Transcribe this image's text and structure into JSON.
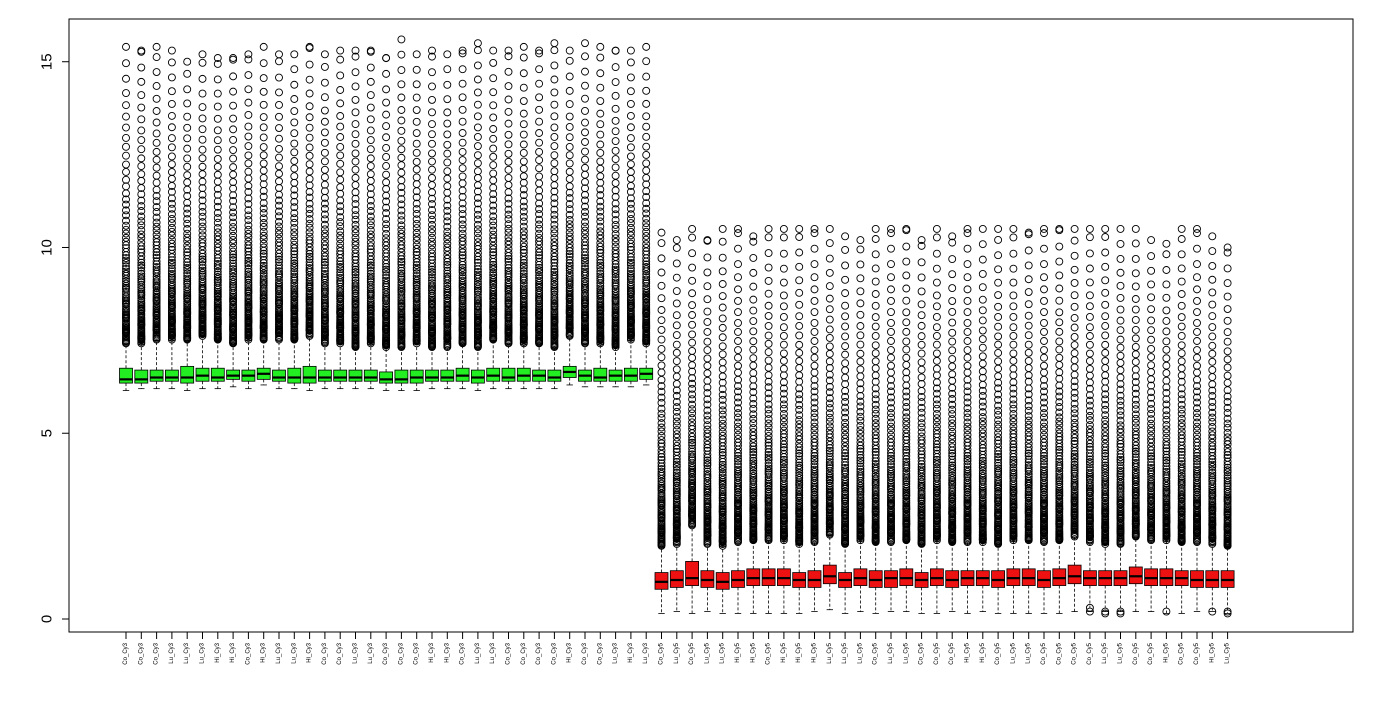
{
  "chart_data": {
    "type": "boxplot",
    "ylim": [
      -0.35,
      16.15
    ],
    "yticks": [
      0,
      5,
      10,
      15
    ],
    "grid": false,
    "legend": "none",
    "colors": {
      "group1": "#22ee22",
      "group2": "#ee1111",
      "outline": "#000000",
      "frame": "#000000"
    },
    "series": [
      {
        "color": "#22ee22",
        "categories": [
          "Co_Cy3",
          "Co_Cy3",
          "Co_Cy3",
          "Lu_Cy3",
          "Lu_Cy3",
          "Lu_Cy3",
          "Hi_Cy3",
          "Hi_Cy3",
          "Co_Cy3",
          "Hi_Cy3",
          "Lu_Cy3",
          "Lu_Cy3",
          "Hi_Cy3",
          "Co_Cy3",
          "Co_Cy3",
          "Lu_Cy3",
          "Lu_Cy3",
          "Co_Cy3",
          "Co_Cy3",
          "Co_Cy3",
          "Hi_Cy3",
          "Hi_Cy3",
          "Co_Cy3",
          "Lu_Cy3",
          "Lu_Cy3",
          "Co_Cy3",
          "Co_Cy3",
          "Co_Cy3",
          "Co_Cy3",
          "Hi_Cy3",
          "Co_Cy3",
          "Co_Cy3",
          "Lu_Cy3",
          "Hi_Cy3",
          "Lu_Cy3"
        ],
        "whisker_low": [
          6.15,
          6.2,
          6.2,
          6.2,
          6.15,
          6.2,
          6.2,
          6.25,
          6.2,
          6.3,
          6.2,
          6.2,
          6.15,
          6.2,
          6.2,
          6.2,
          6.2,
          6.15,
          6.15,
          6.15,
          6.2,
          6.2,
          6.2,
          6.15,
          6.2,
          6.2,
          6.2,
          6.2,
          6.2,
          6.3,
          6.25,
          6.25,
          6.25,
          6.25,
          6.3
        ],
        "q1": [
          6.35,
          6.35,
          6.4,
          6.4,
          6.35,
          6.4,
          6.4,
          6.45,
          6.4,
          6.45,
          6.4,
          6.35,
          6.35,
          6.4,
          6.4,
          6.4,
          6.4,
          6.35,
          6.35,
          6.35,
          6.4,
          6.4,
          6.4,
          6.35,
          6.4,
          6.4,
          6.4,
          6.4,
          6.4,
          6.5,
          6.4,
          6.4,
          6.4,
          6.4,
          6.45
        ],
        "median": [
          6.45,
          6.45,
          6.5,
          6.5,
          6.5,
          6.55,
          6.5,
          6.55,
          6.55,
          6.6,
          6.5,
          6.5,
          6.5,
          6.5,
          6.5,
          6.5,
          6.5,
          6.45,
          6.45,
          6.5,
          6.5,
          6.5,
          6.55,
          6.5,
          6.55,
          6.5,
          6.55,
          6.55,
          6.5,
          6.65,
          6.55,
          6.5,
          6.55,
          6.55,
          6.6
        ],
        "q3": [
          6.75,
          6.7,
          6.7,
          6.7,
          6.8,
          6.75,
          6.75,
          6.7,
          6.7,
          6.75,
          6.7,
          6.75,
          6.8,
          6.7,
          6.7,
          6.7,
          6.7,
          6.65,
          6.7,
          6.7,
          6.7,
          6.7,
          6.75,
          6.7,
          6.75,
          6.75,
          6.75,
          6.7,
          6.7,
          6.8,
          6.7,
          6.75,
          6.7,
          6.75,
          6.75
        ],
        "whisker_high": [
          7.4,
          7.4,
          7.5,
          7.5,
          7.5,
          7.6,
          7.5,
          7.4,
          7.5,
          7.5,
          7.5,
          7.5,
          7.6,
          7.4,
          7.4,
          7.3,
          7.4,
          7.3,
          7.3,
          7.4,
          7.3,
          7.3,
          7.4,
          7.3,
          7.5,
          7.4,
          7.4,
          7.4,
          7.3,
          7.6,
          7.4,
          7.4,
          7.3,
          7.5,
          7.4
        ],
        "max": [
          15.4,
          15.3,
          15.4,
          15.3,
          15.0,
          15.2,
          15.1,
          15.1,
          15.2,
          15.4,
          15.2,
          15.2,
          15.4,
          15.2,
          15.3,
          15.3,
          15.3,
          15.1,
          15.6,
          15.2,
          15.3,
          15.2,
          15.3,
          15.5,
          15.3,
          15.3,
          15.4,
          15.3,
          15.5,
          15.3,
          15.5,
          15.4,
          15.3,
          15.3,
          15.4
        ]
      },
      {
        "color": "#ee1111",
        "categories": [
          "Co_Cy5",
          "Lu_Cy5",
          "Co_Cy5",
          "Lu_Cy5",
          "Lu_Cy5",
          "Hi_Cy5",
          "Hi_Cy5",
          "Co_Cy5",
          "Hi_Cy5",
          "Hi_Cy5",
          "Hi_Cy5",
          "Lu_Cy5",
          "Lu_Cy5",
          "Lu_Cy5",
          "Co_Cy5",
          "Lu_Cy5",
          "Lu_Cy5",
          "Co_Cy5",
          "Co_Cy5",
          "Co_Cy5",
          "Hi_Cy5",
          "Hi_Cy5",
          "Co_Cy5",
          "Lu_Cy5",
          "Lu_Cy5",
          "Co_Cy5",
          "Co_Cy5",
          "Co_Cy5",
          "Co_Cy5",
          "Lu_Cy5",
          "Lu_Cy5",
          "Co_Cy5",
          "Co_Cy5",
          "Hi_Cy5",
          "Co_Cy5",
          "Co_Cy5",
          "Hi_Cy5",
          "Lu_Cy5"
        ],
        "whisker_low": [
          0.15,
          0.2,
          0.15,
          0.2,
          0.15,
          0.15,
          0.15,
          0.15,
          0.15,
          0.15,
          0.2,
          0.25,
          0.15,
          0.2,
          0.15,
          0.2,
          0.2,
          0.15,
          0.15,
          0.2,
          0.15,
          0.2,
          0.15,
          0.15,
          0.15,
          0.15,
          0.15,
          0.2,
          0.2,
          0.2,
          0.2,
          0.2,
          0.2,
          0.15,
          0.15,
          0.2,
          0.2,
          0.15
        ],
        "q1": [
          0.8,
          0.85,
          0.9,
          0.85,
          0.8,
          0.85,
          0.9,
          0.9,
          0.9,
          0.85,
          0.85,
          0.95,
          0.85,
          0.9,
          0.85,
          0.85,
          0.9,
          0.85,
          0.9,
          0.85,
          0.9,
          0.9,
          0.85,
          0.9,
          0.9,
          0.85,
          0.9,
          0.95,
          0.9,
          0.9,
          0.9,
          0.95,
          0.9,
          0.9,
          0.9,
          0.85,
          0.85,
          0.85
        ],
        "median": [
          1.0,
          1.05,
          1.1,
          1.05,
          1.0,
          1.05,
          1.1,
          1.1,
          1.1,
          1.05,
          1.05,
          1.15,
          1.05,
          1.1,
          1.05,
          1.1,
          1.1,
          1.05,
          1.1,
          1.05,
          1.1,
          1.1,
          1.05,
          1.1,
          1.1,
          1.05,
          1.1,
          1.15,
          1.1,
          1.1,
          1.1,
          1.15,
          1.1,
          1.1,
          1.1,
          1.05,
          1.05,
          1.05
        ],
        "q3": [
          1.25,
          1.3,
          1.55,
          1.3,
          1.25,
          1.3,
          1.35,
          1.35,
          1.35,
          1.25,
          1.3,
          1.45,
          1.25,
          1.35,
          1.3,
          1.3,
          1.35,
          1.25,
          1.35,
          1.3,
          1.3,
          1.3,
          1.3,
          1.35,
          1.35,
          1.3,
          1.35,
          1.45,
          1.3,
          1.3,
          1.3,
          1.4,
          1.35,
          1.35,
          1.3,
          1.3,
          1.3,
          1.3
        ],
        "whisker_high": [
          1.95,
          2.0,
          2.5,
          2.0,
          1.95,
          2.05,
          2.1,
          2.1,
          2.1,
          2.0,
          2.05,
          2.25,
          2.0,
          2.1,
          2.05,
          2.05,
          2.1,
          2.0,
          2.1,
          2.05,
          2.05,
          2.05,
          2.0,
          2.1,
          2.1,
          2.05,
          2.1,
          2.2,
          2.05,
          2.0,
          2.0,
          2.2,
          2.1,
          2.1,
          2.05,
          2.05,
          2.0,
          1.95
        ],
        "max": [
          10.4,
          10.2,
          10.5,
          10.2,
          10.5,
          10.5,
          10.3,
          10.5,
          10.5,
          10.5,
          10.5,
          10.5,
          10.3,
          10.2,
          10.5,
          10.5,
          10.5,
          10.2,
          10.5,
          10.3,
          10.5,
          10.5,
          10.5,
          10.5,
          10.4,
          10.5,
          10.5,
          10.5,
          10.5,
          10.5,
          10.5,
          10.5,
          10.2,
          10.1,
          10.5,
          10.5,
          10.3,
          10.0
        ],
        "low_outliers": [
          [],
          [],
          [],
          [],
          [],
          [],
          [],
          [],
          [],
          [],
          [],
          [],
          [],
          [],
          [],
          [],
          [],
          [],
          [],
          [],
          [],
          [],
          [],
          [],
          [],
          [],
          [],
          [],
          [
            0.2,
            0.3
          ],
          [
            0.15,
            0.2
          ],
          [
            0.15,
            0.2
          ],
          [],
          [],
          [
            0.2
          ],
          [],
          [],
          [
            0.2
          ],
          [
            0.15,
            0.2
          ]
        ]
      }
    ]
  }
}
